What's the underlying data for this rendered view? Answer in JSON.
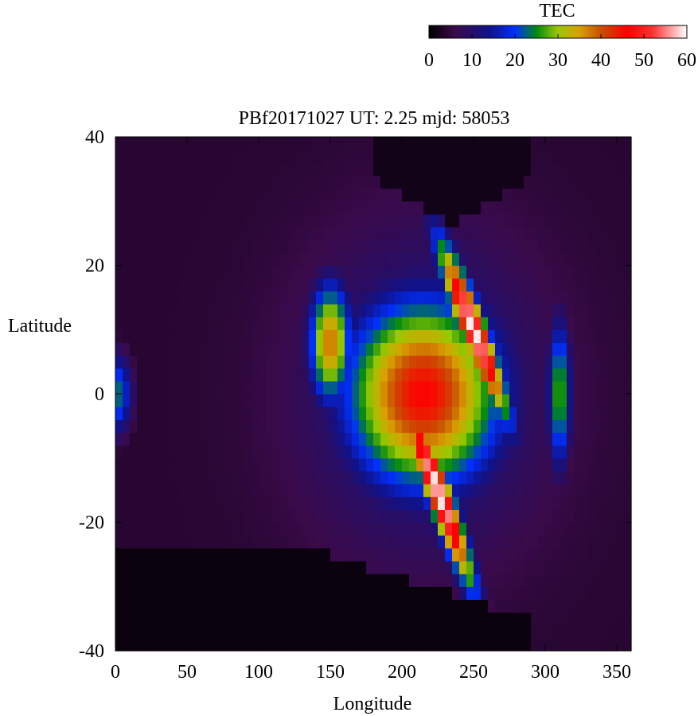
{
  "chart_data": {
    "type": "heatmap",
    "title": "PBf20171027  UT: 2.25  mjd: 58053",
    "xlabel": "Longitude",
    "ylabel": "Latitude",
    "xlim": [
      0,
      360
    ],
    "ylim": [
      -40,
      40
    ],
    "xticks": [
      0,
      50,
      100,
      150,
      200,
      250,
      300,
      350
    ],
    "yticks": [
      -40,
      -20,
      0,
      20,
      40
    ],
    "grid_step": {
      "longitude": 5,
      "latitude": 2
    },
    "colorbar": {
      "label": "TEC",
      "range": [
        0,
        60
      ],
      "ticks": [
        0,
        10,
        20,
        30,
        40,
        50,
        60
      ],
      "placement": "top-right",
      "colormap": [
        {
          "value": 0,
          "color": "#000000"
        },
        {
          "value": 6,
          "color": "#3a0a4a"
        },
        {
          "value": 14,
          "color": "#10128a"
        },
        {
          "value": 20,
          "color": "#0030ff"
        },
        {
          "value": 25,
          "color": "#008a10"
        },
        {
          "value": 30,
          "color": "#9cc800"
        },
        {
          "value": 35,
          "color": "#d8a000"
        },
        {
          "value": 40,
          "color": "#c85000"
        },
        {
          "value": 46,
          "color": "#ff0000"
        },
        {
          "value": 52,
          "color": "#ff3030"
        },
        {
          "value": 60,
          "color": "#ffffff"
        }
      ]
    },
    "field_features": [
      {
        "feature": "background",
        "tec": 4
      },
      {
        "feature": "north-crest",
        "lon": 250,
        "lat": 10,
        "tec": 60,
        "lon_width": 40,
        "lat_width": 7,
        "tilt_deg": -28
      },
      {
        "feature": "south-crest",
        "lon": 225,
        "lat": -15,
        "tec": 60,
        "lon_width": 42,
        "lat_width": 7,
        "tilt_deg": -30
      },
      {
        "feature": "equatorial-band",
        "lon": 215,
        "lat": 0,
        "tec": 46,
        "lon_width": 80,
        "lat_width": 22
      },
      {
        "feature": "west-ridge",
        "lon": 150,
        "lat": 8,
        "tec": 38,
        "lon_width": 22,
        "lat_width": 14
      },
      {
        "feature": "east-ridge",
        "lon": 310,
        "lat": 0,
        "tec": 28,
        "lon_width": 12,
        "lat_width": 18
      },
      {
        "feature": "dayside-envelope",
        "lon": 215,
        "lat": 0,
        "tec": 18,
        "lon_width": 115,
        "lat_width": 34
      },
      {
        "feature": "western-equator",
        "lon": 0,
        "lat": 0,
        "tec": 24,
        "lon_width": 18,
        "lat_width": 10
      },
      {
        "feature": "northern-dark-region",
        "lon_range": [
          180,
          290
        ],
        "lat_min": 26,
        "tec": 0
      },
      {
        "feature": "southern-dark-region",
        "lon_range": [
          0,
          290
        ],
        "lat_max": -23,
        "tec": 0
      }
    ]
  }
}
